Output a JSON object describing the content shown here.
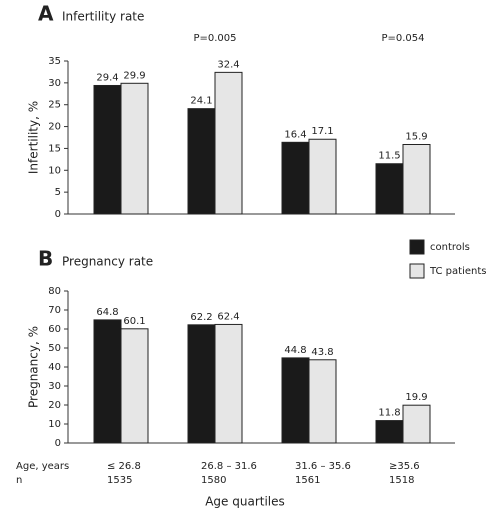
{
  "chart_data": [
    {
      "type": "bar",
      "panel": "A",
      "title": "Infertility rate",
      "ylabel": "Infertility, %",
      "ylim": [
        0,
        35
      ],
      "yticks": [
        0,
        5,
        10,
        15,
        20,
        25,
        30,
        35
      ],
      "annotations": [
        null,
        "P=0.005",
        null,
        "P=0.054"
      ],
      "series": [
        {
          "color": "#1a1a1a",
          "values": [
            29.4,
            24.1,
            16.4,
            11.5
          ]
        },
        {
          "color": "#e6e6e6",
          "values": [
            29.9,
            32.4,
            17.1,
            15.9
          ]
        }
      ]
    },
    {
      "type": "bar",
      "panel": "B",
      "title": "Pregnancy rate",
      "ylabel": "Pregnancy, %",
      "ylim": [
        0,
        80
      ],
      "yticks": [
        0,
        10,
        20,
        30,
        40,
        50,
        60,
        70,
        80
      ],
      "series": [
        {
          "name": "controls",
          "color": "#1a1a1a",
          "values": [
            64.8,
            62.2,
            44.8,
            11.8
          ]
        },
        {
          "name": "TC patients",
          "color": "#e6e6e6",
          "values": [
            60.1,
            62.4,
            43.8,
            19.9
          ]
        }
      ]
    }
  ],
  "table": {
    "row_labels": [
      "Age, years",
      "n"
    ],
    "age": [
      "≤ 26.8",
      "26.8 – 31.6",
      "31.6 – 35.6",
      "≥35.6"
    ],
    "n": [
      "1535",
      "1580",
      "1561",
      "1518"
    ]
  },
  "x_label": "Age quartiles"
}
